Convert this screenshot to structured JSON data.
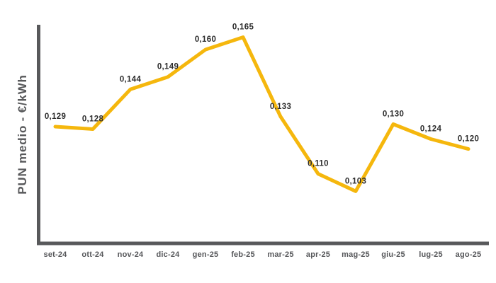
{
  "chart": {
    "colors": {
      "line": "#F5B70D",
      "axis": "#58595B",
      "data_label": "#2D2D2D",
      "tick_label": "#555659"
    }
  },
  "chart_data": {
    "type": "line",
    "title": "",
    "xlabel": "",
    "ylabel": "PUN medio - €/kWh",
    "categories": [
      "set-24",
      "ott-24",
      "nov-24",
      "dic-24",
      "gen-25",
      "feb-25",
      "mar-25",
      "apr-25",
      "mag-25",
      "giu-25",
      "lug-25",
      "ago-25"
    ],
    "series": [
      {
        "name": "PUN medio",
        "values": [
          0.129,
          0.128,
          0.144,
          0.149,
          0.16,
          0.165,
          0.133,
          0.11,
          0.103,
          0.13,
          0.124,
          0.12
        ],
        "point_labels": [
          "0,129",
          "0,128",
          "0,144",
          "0,149",
          "0,160",
          "0,165",
          "0,133",
          "0,110",
          "0,103",
          "0,130",
          "0,124",
          "0,120"
        ]
      }
    ],
    "ylim": [
      0.082,
      0.17
    ],
    "grid": false,
    "legend_position": "none",
    "y_tick_labels_visible": false
  }
}
